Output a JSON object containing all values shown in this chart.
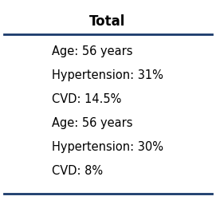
{
  "title": "Total",
  "title_fontsize": 12,
  "title_fontweight": "bold",
  "body_lines": [
    "Age: 56 years",
    "Hypertension: 31%",
    "CVD: 14.5%",
    "Age: 56 years",
    "Hypertension: 30%",
    "CVD: 8%"
  ],
  "body_fontsize": 10.5,
  "line_color": "#1a3a6b",
  "line_width": 2.0,
  "background_color": "#ffffff",
  "text_color": "#000000",
  "fig_width": 2.71,
  "fig_height": 2.71,
  "dpi": 100
}
